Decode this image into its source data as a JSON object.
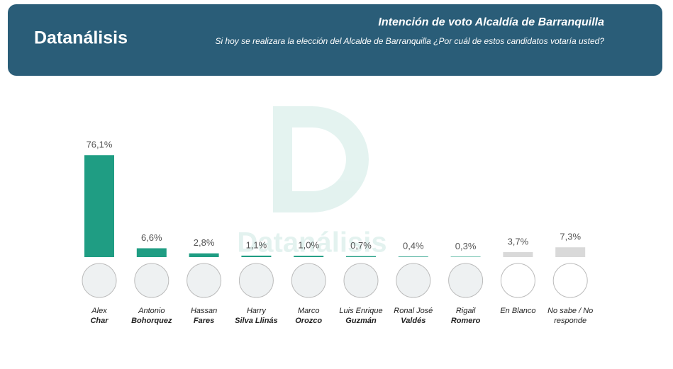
{
  "header": {
    "logo": "Datanálisis",
    "title": "Intención de voto Alcaldía de Barranquilla",
    "subtitle": "Si hoy se realizara la elección del Alcalde de Barranquilla ¿Por cuál de estos candidatos votaría usted?"
  },
  "chart_data": {
    "type": "bar",
    "categories": [
      {
        "first": "Alex",
        "last": "Char"
      },
      {
        "first": "Antonio",
        "last": "Bohorquez"
      },
      {
        "first": "Hassan",
        "last": "Fares"
      },
      {
        "first": "Harry",
        "last": "Silva Llinás"
      },
      {
        "first": "Marco",
        "last": "Orozco"
      },
      {
        "first": "Luis Enrique",
        "last": "Guzmán"
      },
      {
        "first": "Ronal José",
        "last": "Valdés"
      },
      {
        "first": "Rigail",
        "last": "Romero"
      },
      {
        "first": "En Blanco"
      },
      {
        "first": "No sabe / No responde"
      }
    ],
    "values": [
      76.1,
      6.6,
      2.8,
      1.1,
      1.0,
      0.7,
      0.4,
      0.3,
      3.7,
      7.3
    ],
    "value_labels": [
      "76,1%",
      "6,6%",
      "2,8%",
      "1,1%",
      "1,0%",
      "0,7%",
      "0,4%",
      "0,3%",
      "3,7%",
      "7,3%"
    ],
    "colors": [
      "#1f9d83",
      "#1f9d83",
      "#1f9d83",
      "#1f9d83",
      "#1f9d83",
      "#1f9d83",
      "#1f9d83",
      "#1f9d83",
      "#d9d9d9",
      "#d9d9d9"
    ]
  }
}
